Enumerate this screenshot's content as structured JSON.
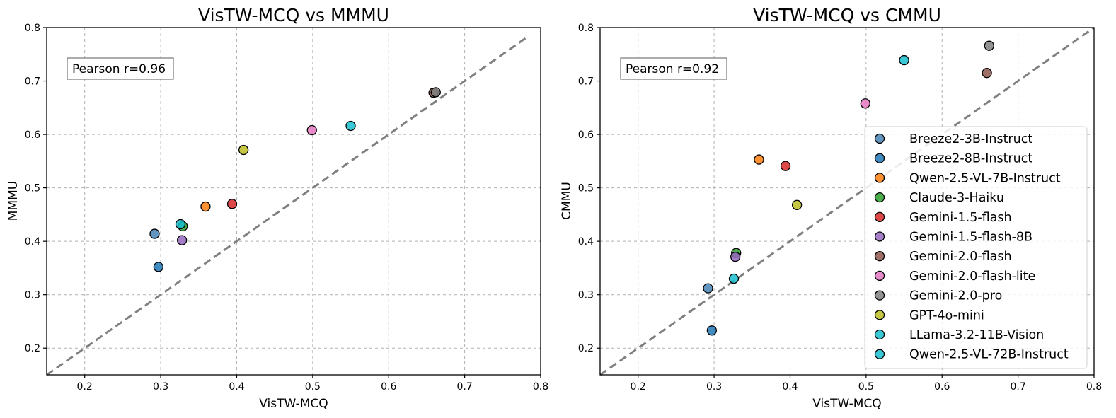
{
  "chart_data": [
    {
      "type": "scatter",
      "title": "VisTW-MCQ vs MMMU",
      "xlabel": "VisTW-MCQ",
      "ylabel": "MMMU",
      "xlim": [
        0.15,
        0.8
      ],
      "ylim": [
        0.15,
        0.8
      ],
      "xticks": [
        0.2,
        0.3,
        0.4,
        0.5,
        0.6,
        0.7,
        0.8
      ],
      "yticks": [
        0.2,
        0.3,
        0.4,
        0.5,
        0.6,
        0.7,
        0.8
      ],
      "grid": true,
      "annotation": "Pearson r=0.96",
      "reference_line": {
        "from": [
          0.15,
          0.15
        ],
        "to": [
          0.78,
          0.78
        ],
        "style": "dashed"
      },
      "points": [
        {
          "name": "Breeze2-3B-Instruct",
          "x": 0.292,
          "y": 0.414
        },
        {
          "name": "Breeze2-8B-Instruct",
          "x": 0.297,
          "y": 0.352
        },
        {
          "name": "Qwen-2.5-VL-7B-Instruct",
          "x": 0.359,
          "y": 0.465
        },
        {
          "name": "Claude-3-Haiku",
          "x": 0.329,
          "y": 0.428
        },
        {
          "name": "Gemini-1.5-flash",
          "x": 0.394,
          "y": 0.47
        },
        {
          "name": "Gemini-1.5-flash-8B",
          "x": 0.328,
          "y": 0.402
        },
        {
          "name": "Gemini-2.0-flash",
          "x": 0.659,
          "y": 0.678
        },
        {
          "name": "Gemini-2.0-flash-lite",
          "x": 0.499,
          "y": 0.608
        },
        {
          "name": "Gemini-2.0-pro",
          "x": 0.662,
          "y": 0.679
        },
        {
          "name": "GPT-4o-mini",
          "x": 0.409,
          "y": 0.571
        },
        {
          "name": "LLama-3.2-11B-Vision",
          "x": 0.326,
          "y": 0.432
        },
        {
          "name": "Qwen-2.5-VL-72B-Instruct",
          "x": 0.55,
          "y": 0.616
        }
      ]
    },
    {
      "type": "scatter",
      "title": "VisTW-MCQ vs CMMU",
      "xlabel": "VisTW-MCQ",
      "ylabel": "CMMU",
      "xlim": [
        0.15,
        0.8
      ],
      "ylim": [
        0.15,
        0.8
      ],
      "xticks": [
        0.2,
        0.3,
        0.4,
        0.5,
        0.6,
        0.7,
        0.8
      ],
      "yticks": [
        0.2,
        0.3,
        0.4,
        0.5,
        0.6,
        0.7,
        0.8
      ],
      "grid": true,
      "annotation": "Pearson r=0.92",
      "reference_line": {
        "from": [
          0.15,
          0.15
        ],
        "to": [
          0.8,
          0.8
        ],
        "style": "dashed"
      },
      "legend_position": "lower-right",
      "points": [
        {
          "name": "Breeze2-3B-Instruct",
          "x": 0.292,
          "y": 0.312
        },
        {
          "name": "Breeze2-8B-Instruct",
          "x": 0.297,
          "y": 0.233
        },
        {
          "name": "Qwen-2.5-VL-7B-Instruct",
          "x": 0.359,
          "y": 0.553
        },
        {
          "name": "Claude-3-Haiku",
          "x": 0.329,
          "y": 0.378
        },
        {
          "name": "Gemini-1.5-flash",
          "x": 0.394,
          "y": 0.541
        },
        {
          "name": "Gemini-1.5-flash-8B",
          "x": 0.328,
          "y": 0.371
        },
        {
          "name": "Gemini-2.0-flash",
          "x": 0.659,
          "y": 0.715
        },
        {
          "name": "Gemini-2.0-flash-lite",
          "x": 0.499,
          "y": 0.658
        },
        {
          "name": "Gemini-2.0-pro",
          "x": 0.662,
          "y": 0.766
        },
        {
          "name": "GPT-4o-mini",
          "x": 0.409,
          "y": 0.468
        },
        {
          "name": "LLama-3.2-11B-Vision",
          "x": 0.326,
          "y": 0.33
        },
        {
          "name": "Qwen-2.5-VL-72B-Instruct",
          "x": 0.55,
          "y": 0.739
        }
      ]
    }
  ],
  "legend": [
    {
      "name": "Breeze2-3B-Instruct",
      "color": "#4682b4"
    },
    {
      "name": "Breeze2-8B-Instruct",
      "color": "#1f77b4"
    },
    {
      "name": "Qwen-2.5-VL-7B-Instruct",
      "color": "#ff7f0e"
    },
    {
      "name": "Claude-3-Haiku",
      "color": "#2ca02c"
    },
    {
      "name": "Gemini-1.5-flash",
      "color": "#d62728"
    },
    {
      "name": "Gemini-1.5-flash-8B",
      "color": "#9467bd"
    },
    {
      "name": "Gemini-2.0-flash",
      "color": "#8c564b"
    },
    {
      "name": "Gemini-2.0-flash-lite",
      "color": "#e377c2"
    },
    {
      "name": "Gemini-2.0-pro",
      "color": "#7f7f7f"
    },
    {
      "name": "GPT-4o-mini",
      "color": "#bcbd22"
    },
    {
      "name": "LLama-3.2-11B-Vision",
      "color": "#17becf"
    },
    {
      "name": "Qwen-2.5-VL-72B-Instruct",
      "color": "#17becf"
    }
  ]
}
